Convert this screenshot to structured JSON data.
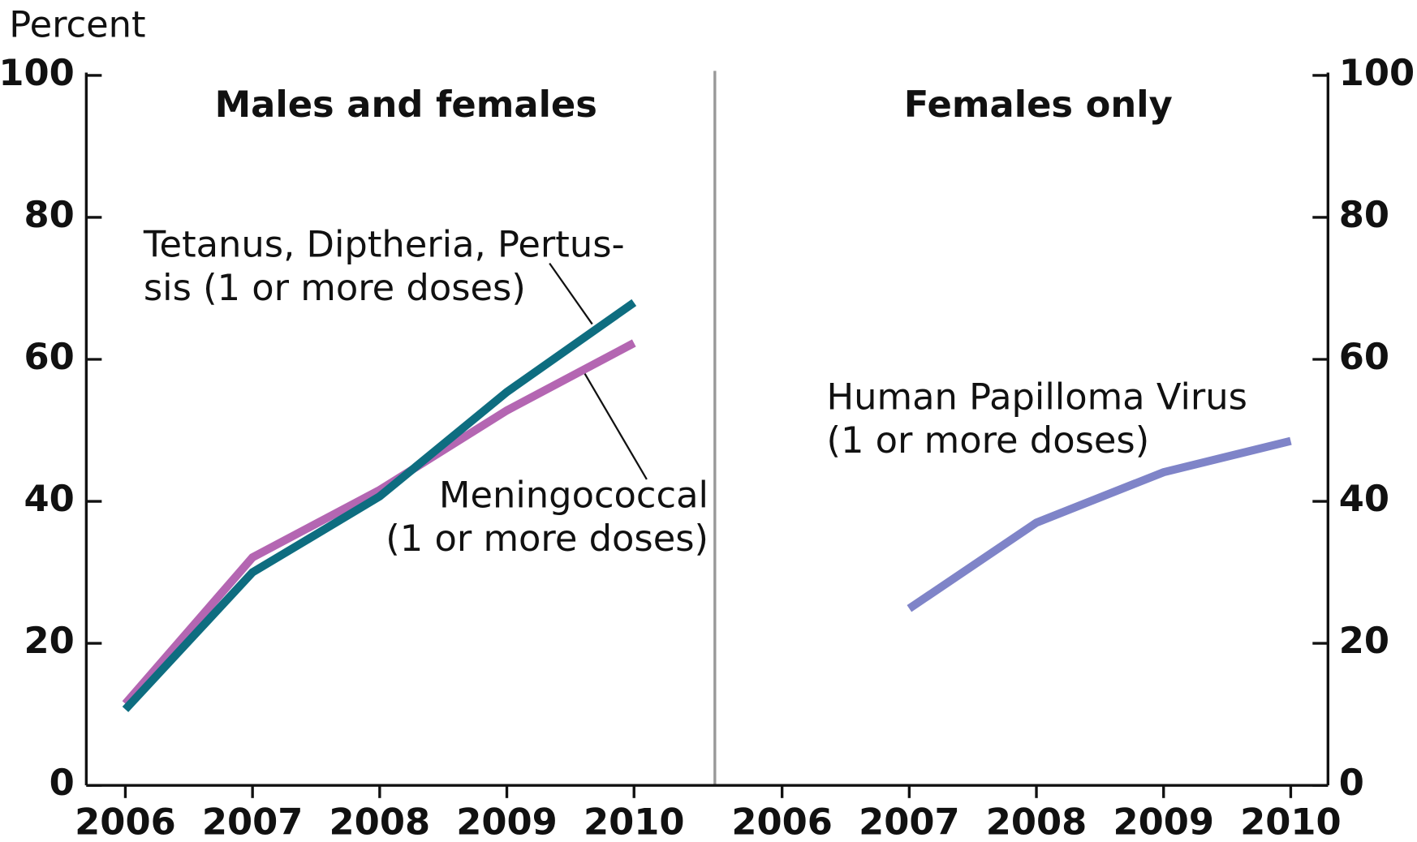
{
  "chart_data": [
    {
      "type": "line",
      "title": "Males and females",
      "y_label": "Percent",
      "y_axis_side": "left",
      "categories": [
        "2006",
        "2007",
        "2008",
        "2009",
        "2010"
      ],
      "series": [
        {
          "name": "Meningococcal\n(1 or more doses)",
          "color": "#b466b2",
          "values": [
            11.5,
            32.1,
            41.6,
            52.8,
            62.3
          ]
        },
        {
          "name": "Tetanus, Diptheria, Pertus-\nsis (1 or more doses)",
          "color": "#0e6d80",
          "values": [
            10.7,
            30.0,
            40.7,
            55.4,
            68.0
          ]
        }
      ],
      "ylim": [
        0,
        100
      ],
      "yticks": [
        0,
        20,
        40,
        60,
        80,
        100
      ]
    },
    {
      "type": "line",
      "title": "Females only",
      "y_axis_side": "right",
      "categories": [
        "2006",
        "2007",
        "2008",
        "2009",
        "2010"
      ],
      "series": [
        {
          "name": "Human Papilloma Virus\n(1 or more doses)",
          "color": "#7f84c8",
          "values": [
            null,
            24.9,
            37.0,
            44.1,
            48.5
          ]
        }
      ],
      "ylim": [
        0,
        100
      ],
      "yticks": [
        0,
        20,
        40,
        60,
        80,
        100
      ]
    }
  ]
}
